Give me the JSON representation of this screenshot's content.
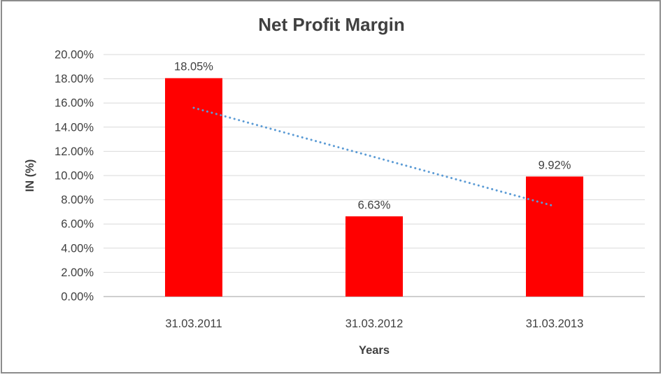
{
  "chart_data": {
    "type": "bar",
    "title": "Net Profit Margin",
    "xlabel": "Years",
    "ylabel": "IN (%)",
    "categories": [
      "31.03.2011",
      "31.03.2012",
      "31.03.2013"
    ],
    "values": [
      18.05,
      6.63,
      9.92
    ],
    "data_labels": [
      "18.05%",
      "6.63%",
      "9.92%"
    ],
    "ylim": [
      0,
      20
    ],
    "ytick_step": 2,
    "ytick_labels": [
      "0.00%",
      "2.00%",
      "4.00%",
      "6.00%",
      "8.00%",
      "10.00%",
      "12.00%",
      "14.00%",
      "16.00%",
      "18.00%",
      "20.00%"
    ],
    "grid": true,
    "legend": false,
    "trendline": {
      "type": "linear",
      "style": "dotted",
      "start_value": 15.6,
      "end_value": 7.47,
      "color": "#5B9BD5"
    },
    "colors": {
      "bar": "#FF0000",
      "gridline": "#D9D9D9",
      "axis_line": "#BFBFBF",
      "text": "#3F3F3F",
      "title": "#404040",
      "frame": "#8C8C8C"
    }
  }
}
